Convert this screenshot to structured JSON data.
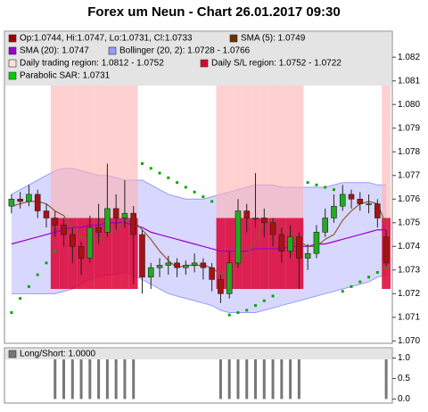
{
  "chart_data": {
    "type": "candlestick",
    "title": "Forex um Neun - Chart 26.01.2017 09:30",
    "legend": [
      {
        "label": "Op:1.0744, Hi:1.0747, Lo:1.0731, Cl:1.0733",
        "color": "#a00000"
      },
      {
        "label": "SMA (5): 1.0749",
        "color": "#663300"
      },
      {
        "label": "SMA (20): 1.0747",
        "color": "#9900cc"
      },
      {
        "label": "Bollinger (20, 2): 1.0728 - 1.0766",
        "color": "#9999ff"
      },
      {
        "label": "Daily trading region: 1.0812 - 1.0752",
        "color": "#ffe0e0"
      },
      {
        "label": "Daily S/L region: 1.0752 - 1.0722",
        "color": "#dd0033"
      },
      {
        "label": "Parabolic SAR: 1.0731",
        "color": "#00cc00"
      }
    ],
    "up_color": "#22aa22",
    "down_color": "#aa1111",
    "ohlc": [
      [
        1.0757,
        1.0762,
        1.0754,
        1.076
      ],
      [
        1.076,
        1.0763,
        1.0756,
        1.0759
      ],
      [
        1.0759,
        1.0766,
        1.0757,
        1.0762
      ],
      [
        1.0762,
        1.0764,
        1.0752,
        1.0755
      ],
      [
        1.0755,
        1.0758,
        1.0748,
        1.0752
      ],
      [
        1.0752,
        1.0755,
        1.0744,
        1.0749
      ],
      [
        1.0749,
        1.0752,
        1.074,
        1.0745
      ],
      [
        1.0745,
        1.0748,
        1.0733,
        1.074
      ],
      [
        1.074,
        1.0742,
        1.0728,
        1.0735
      ],
      [
        1.0735,
        1.0753,
        1.0733,
        1.0748
      ],
      [
        1.0748,
        1.0758,
        1.0741,
        1.0746
      ],
      [
        1.0746,
        1.0775,
        1.0744,
        1.0756
      ],
      [
        1.0756,
        1.0762,
        1.0747,
        1.0752
      ],
      [
        1.0752,
        1.0768,
        1.0748,
        1.0754
      ],
      [
        1.0754,
        1.0757,
        1.0724,
        1.0745
      ],
      [
        1.0745,
        1.0747,
        1.072,
        1.0727
      ],
      [
        1.0727,
        1.0733,
        1.0722,
        1.0731
      ],
      [
        1.0731,
        1.0735,
        1.0727,
        1.0732
      ],
      [
        1.0732,
        1.0736,
        1.0728,
        1.0733
      ],
      [
        1.0733,
        1.0735,
        1.0727,
        1.0731
      ],
      [
        1.0731,
        1.0734,
        1.0728,
        1.0732
      ],
      [
        1.0732,
        1.0737,
        1.0729,
        1.0733
      ],
      [
        1.0733,
        1.0735,
        1.0726,
        1.0731
      ],
      [
        1.0731,
        1.0733,
        1.0721,
        1.0726
      ],
      [
        1.0726,
        1.0728,
        1.0716,
        1.072
      ],
      [
        1.072,
        1.0738,
        1.0718,
        1.0733
      ],
      [
        1.0733,
        1.076,
        1.0731,
        1.0755
      ],
      [
        1.0755,
        1.0758,
        1.0746,
        1.0752
      ],
      [
        1.0752,
        1.0771,
        1.0748,
        1.0752
      ],
      [
        1.0752,
        1.0756,
        1.0744,
        1.075
      ],
      [
        1.075,
        1.0752,
        1.074,
        1.0745
      ],
      [
        1.0745,
        1.0748,
        1.0733,
        1.0738
      ],
      [
        1.0738,
        1.0749,
        1.0735,
        1.0744
      ],
      [
        1.0744,
        1.0746,
        1.0722,
        1.0735
      ],
      [
        1.0735,
        1.0741,
        1.073,
        1.0737
      ],
      [
        1.0737,
        1.0749,
        1.0735,
        1.0746
      ],
      [
        1.0746,
        1.0756,
        1.0744,
        1.0752
      ],
      [
        1.0752,
        1.0762,
        1.075,
        1.0757
      ],
      [
        1.0757,
        1.0766,
        1.0755,
        1.0762
      ],
      [
        1.0762,
        1.0764,
        1.0756,
        1.076
      ],
      [
        1.076,
        1.0763,
        1.0755,
        1.0758
      ],
      [
        1.0758,
        1.0762,
        1.0754,
        1.0758
      ],
      [
        1.0758,
        1.076,
        1.0748,
        1.0752
      ],
      [
        1.0744,
        1.0747,
        1.0731,
        1.0733
      ]
    ],
    "sma5": [
      1.0757,
      1.0758,
      1.0759,
      1.0759,
      1.0758,
      1.0755,
      1.0753,
      1.0748,
      1.0744,
      1.0743,
      1.0743,
      1.0745,
      1.0747,
      1.0751,
      1.0751,
      1.0747,
      1.0743,
      1.0738,
      1.0734,
      1.0731,
      1.0732,
      1.0732,
      1.0732,
      1.0731,
      1.0728,
      1.0729,
      1.0733,
      1.0737,
      1.0742,
      1.0752,
      1.0751,
      1.0747,
      1.0746,
      1.0742,
      1.074,
      1.074,
      1.0743,
      1.0745,
      1.0751,
      1.0755,
      1.0758,
      1.0759,
      1.0758,
      1.0749
    ],
    "sma20": [
      1.0741,
      1.0742,
      1.0743,
      1.0744,
      1.0745,
      1.0746,
      1.0747,
      1.0748,
      1.0748,
      1.0749,
      1.0749,
      1.075,
      1.075,
      1.075,
      1.0749,
      1.0748,
      1.0746,
      1.0745,
      1.0744,
      1.0743,
      1.0742,
      1.0741,
      1.074,
      1.0739,
      1.0738,
      1.0738,
      1.0738,
      1.0738,
      1.0739,
      1.0739,
      1.0739,
      1.0739,
      1.074,
      1.074,
      1.074,
      1.0741,
      1.0741,
      1.0742,
      1.0743,
      1.0744,
      1.0745,
      1.0746,
      1.0747,
      1.0747
    ],
    "bollinger_upper": [
      1.0762,
      1.0764,
      1.0766,
      1.0768,
      1.077,
      1.0772,
      1.0773,
      1.0773,
      1.0772,
      1.0771,
      1.077,
      1.077,
      1.0769,
      1.0768,
      1.0768,
      1.0768,
      1.0766,
      1.0764,
      1.0762,
      1.0761,
      1.076,
      1.076,
      1.076,
      1.0761,
      1.0762,
      1.0763,
      1.0764,
      1.0765,
      1.0766,
      1.0766,
      1.0766,
      1.0765,
      1.0765,
      1.0765,
      1.0765,
      1.0765,
      1.0765,
      1.0766,
      1.0767,
      1.0767,
      1.0767,
      1.0767,
      1.0766,
      1.0766
    ],
    "bollinger_lower": [
      1.072,
      1.072,
      1.072,
      1.072,
      1.072,
      1.072,
      1.0721,
      1.0722,
      1.0724,
      1.0726,
      1.0727,
      1.0728,
      1.0728,
      1.0729,
      1.0728,
      1.0726,
      1.0724,
      1.0722,
      1.072,
      1.0719,
      1.0718,
      1.0717,
      1.0716,
      1.0715,
      1.0713,
      1.0712,
      1.0712,
      1.0712,
      1.0712,
      1.0713,
      1.0714,
      1.0715,
      1.0716,
      1.0717,
      1.0718,
      1.0719,
      1.072,
      1.0721,
      1.0722,
      1.0723,
      1.0724,
      1.0725,
      1.0727,
      1.0728
    ],
    "sar": [
      1.0712,
      1.0718,
      1.0723,
      1.0728,
      1.0733,
      1.0738,
      null,
      null,
      null,
      null,
      null,
      null,
      null,
      null,
      null,
      1.0775,
      1.0773,
      1.0771,
      1.0769,
      1.0767,
      1.0765,
      1.0763,
      1.0761,
      1.0759,
      null,
      1.0711,
      1.0712,
      1.0713,
      1.0715,
      1.0717,
      1.0719,
      null,
      null,
      null,
      1.0767,
      1.0766,
      1.0765,
      1.0764,
      1.0721,
      1.0723,
      1.0725,
      1.0727,
      1.0729,
      1.0731
    ],
    "trading_region": [
      1.0812,
      1.0752
    ],
    "sl_region": [
      1.0752,
      1.0722
    ],
    "ylim": [
      1.0699,
      1.0831
    ],
    "yticks": [
      {
        "value": 1.07,
        "label": "1.070"
      },
      1.071,
      1.072,
      1.073,
      1.074,
      1.075,
      1.076,
      1.077,
      1.078,
      1.079,
      {
        "value": 1.08,
        "label": "1.080"
      },
      1.081,
      1.082
    ],
    "long_short_label": "Long/Short: 1.0000",
    "long_short": [
      0,
      0,
      0,
      0,
      0,
      1,
      1,
      1,
      1,
      1,
      1,
      1,
      1,
      1,
      1,
      0,
      0,
      0,
      0,
      0,
      0,
      0,
      0,
      0,
      1,
      1,
      1,
      1,
      1,
      1,
      1,
      1,
      1,
      1,
      0,
      0,
      0,
      0,
      0,
      0,
      0,
      0,
      0,
      1
    ],
    "long_short_ylim": [
      -0.1,
      1.25
    ],
    "long_short_yticks": [
      {
        "value": 0,
        "label": "0.0"
      },
      0.5,
      {
        "value": 1,
        "label": "1.0"
      }
    ]
  }
}
